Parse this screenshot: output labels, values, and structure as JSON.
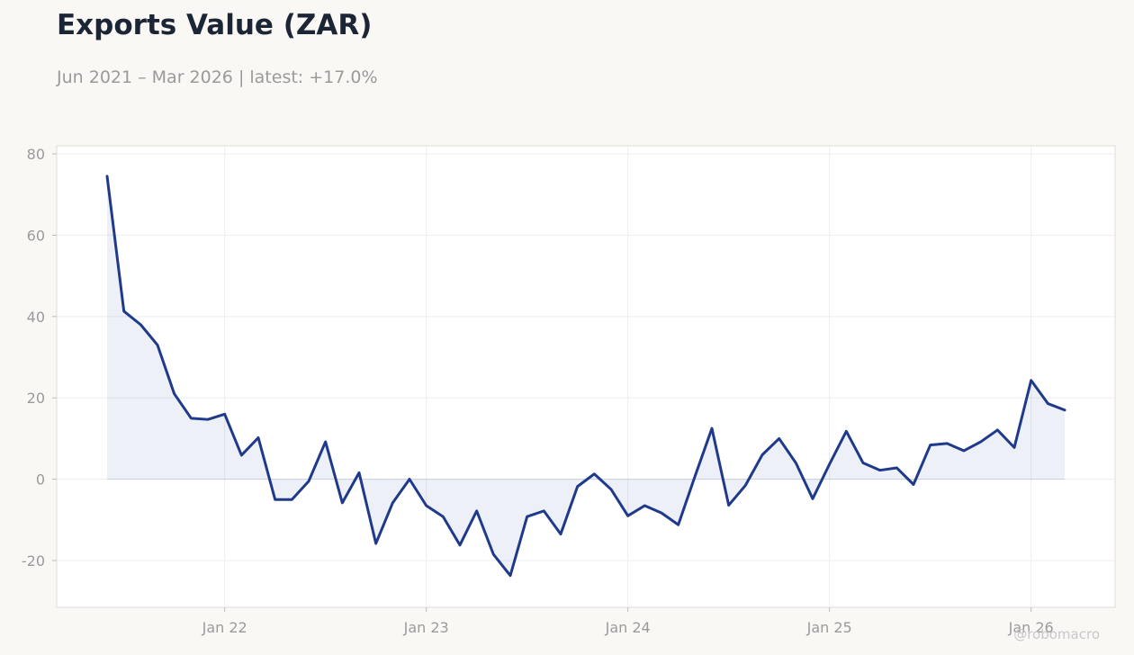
{
  "header": {
    "title": "Exports Value (ZAR)",
    "subtitle": "Jun 2021 – Mar 2026 | latest: +17.0%"
  },
  "watermark": "@robomacro",
  "colors": {
    "line": "#1f3a8a",
    "fill": "#1f3a8a",
    "background": "#f9f8f5",
    "plot_background": "#ffffff",
    "grid": "#eeeeee",
    "tick_text": "#9a9a9a"
  },
  "chart_data": {
    "type": "area",
    "ylim": [
      -31.5,
      82
    ],
    "grid": true,
    "y_ticks": [
      -20,
      0,
      20,
      40,
      60,
      80
    ],
    "y_tick_labels": [
      "-20",
      "0",
      "20",
      "40",
      "60",
      "80"
    ],
    "x_ticks": [
      "2022-01",
      "2023-01",
      "2024-01",
      "2025-01",
      "2026-01"
    ],
    "x_tick_labels": [
      "Jan 22",
      "Jan 23",
      "Jan 24",
      "Jan 25",
      "Jan 26"
    ],
    "xlim": [
      "2021-03",
      "2026-06"
    ],
    "series": [
      {
        "x": [
          "2021-06",
          "2021-07",
          "2021-08",
          "2021-09",
          "2021-10",
          "2021-11",
          "2021-12",
          "2022-01",
          "2022-02",
          "2022-03",
          "2022-04",
          "2022-05",
          "2022-06",
          "2022-07",
          "2022-08",
          "2022-09",
          "2022-10",
          "2022-11",
          "2022-12",
          "2023-01",
          "2023-02",
          "2023-03",
          "2023-04",
          "2023-05",
          "2023-06",
          "2023-07",
          "2023-08",
          "2023-09",
          "2023-10",
          "2023-11",
          "2023-12",
          "2024-01",
          "2024-02",
          "2024-03",
          "2024-04",
          "2024-05",
          "2024-06",
          "2024-07",
          "2024-08",
          "2024-09",
          "2024-10",
          "2024-11",
          "2024-12",
          "2025-01",
          "2025-02",
          "2025-03",
          "2025-04",
          "2025-05",
          "2025-06",
          "2025-07",
          "2025-08",
          "2025-09",
          "2025-10",
          "2025-11",
          "2025-12",
          "2026-01",
          "2026-02",
          "2026-03"
        ],
        "values": [
          74.5,
          41.3,
          38.0,
          33.0,
          21.0,
          15.0,
          14.7,
          16.0,
          5.9,
          10.2,
          -5.0,
          -5.0,
          -0.5,
          9.2,
          -5.8,
          1.6,
          -15.8,
          -5.8,
          0.0,
          -6.5,
          -9.2,
          -16.2,
          -7.8,
          -18.5,
          -23.7,
          -9.2,
          -7.8,
          -13.5,
          -1.8,
          1.3,
          -2.5,
          -9.0,
          -6.5,
          -8.3,
          -11.2,
          0.8,
          12.5,
          -6.4,
          -1.5,
          6.0,
          10.0,
          4.0,
          -4.8,
          3.7,
          11.8,
          4.0,
          2.2,
          2.8,
          -1.3,
          8.4,
          8.8,
          7.0,
          9.2,
          12.1,
          7.8,
          24.3,
          18.6,
          17.0
        ]
      }
    ]
  }
}
